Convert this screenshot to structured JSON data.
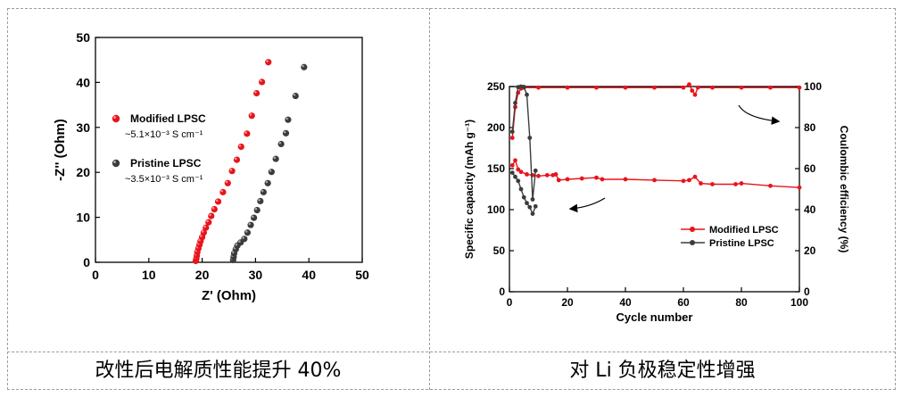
{
  "captions": {
    "left": "改性后电解质性能提升 40%",
    "right": "对 Li 负极稳定性增强"
  },
  "chart_data": [
    {
      "type": "scatter",
      "title": "",
      "xlabel": "Z' (Ohm)",
      "ylabel": "-Z'' (Ohm)",
      "xlim": [
        0,
        50
      ],
      "ylim": [
        0,
        50
      ],
      "xticks": [
        0,
        10,
        20,
        30,
        40,
        50
      ],
      "yticks": [
        0,
        10,
        20,
        30,
        40,
        50
      ],
      "grid": false,
      "legend_position": "left",
      "series": [
        {
          "name": "Modified LPSC",
          "sublabel": "~5.1×10⁻³ S cm⁻¹",
          "color": "#e8141c",
          "points": [
            [
              18.8,
              0.3
            ],
            [
              18.9,
              0.8
            ],
            [
              19.0,
              1.5
            ],
            [
              19.1,
              2.3
            ],
            [
              19.3,
              3.1
            ],
            [
              19.5,
              3.9
            ],
            [
              19.7,
              4.7
            ],
            [
              20.0,
              5.6
            ],
            [
              20.3,
              6.6
            ],
            [
              20.7,
              7.7
            ],
            [
              21.2,
              8.9
            ],
            [
              21.7,
              10.3
            ],
            [
              22.3,
              11.8
            ],
            [
              23.0,
              13.5
            ],
            [
              23.9,
              15.6
            ],
            [
              24.8,
              17.6
            ],
            [
              25.6,
              20.3
            ],
            [
              26.5,
              22.8
            ],
            [
              27.3,
              25.7
            ],
            [
              28.4,
              28.6
            ],
            [
              29.3,
              32.6
            ],
            [
              30.2,
              37.6
            ],
            [
              31.2,
              40.1
            ],
            [
              32.4,
              44.5
            ]
          ]
        },
        {
          "name": "Pristine LPSC",
          "sublabel": "~3.5×10⁻³ S cm⁻¹",
          "color": "#3c3c3c",
          "points": [
            [
              25.8,
              0.5
            ],
            [
              25.9,
              1.2
            ],
            [
              26.0,
              2.0
            ],
            [
              26.3,
              2.9
            ],
            [
              26.6,
              3.7
            ],
            [
              27.2,
              4.4
            ],
            [
              27.9,
              5.2
            ],
            [
              28.5,
              6.6
            ],
            [
              29.1,
              8.3
            ],
            [
              29.7,
              9.9
            ],
            [
              30.3,
              11.6
            ],
            [
              30.9,
              13.6
            ],
            [
              31.5,
              15.6
            ],
            [
              32.3,
              17.6
            ],
            [
              33.0,
              20.1
            ],
            [
              33.8,
              23.0
            ],
            [
              34.8,
              26.3
            ],
            [
              35.7,
              28.7
            ],
            [
              36.1,
              31.7
            ],
            [
              37.5,
              37.0
            ],
            [
              39.1,
              43.4
            ]
          ]
        }
      ]
    },
    {
      "type": "scatter",
      "title": "",
      "xlabel": "Cycle number",
      "ylabel": "Specific capacity (mAh g⁻¹)",
      "y2label": "Coulombic efficiency (%)",
      "xlim": [
        0,
        100
      ],
      "ylim": [
        0,
        250
      ],
      "y2lim": [
        0,
        100
      ],
      "xticks": [
        0,
        20,
        40,
        60,
        80,
        100
      ],
      "yticks": [
        0,
        50,
        100,
        150,
        200,
        250
      ],
      "y2ticks": [
        0,
        20,
        40,
        60,
        80,
        100
      ],
      "grid": false,
      "legend_position": "bottom-right",
      "annotation_arrows": [
        "pointing left toward capacity curves",
        "pointing right toward efficiency curves"
      ],
      "series": [
        {
          "name": "Modified LPSC",
          "color": "#e8141c",
          "capacity": [
            [
              1,
              154
            ],
            [
              2,
              160
            ],
            [
              3,
              149
            ],
            [
              4,
              146
            ],
            [
              6,
              143
            ],
            [
              8,
              142
            ],
            [
              10,
              141
            ],
            [
              13,
              142
            ],
            [
              15,
              142
            ],
            [
              16,
              143
            ],
            [
              17,
              136
            ],
            [
              20,
              137
            ],
            [
              25,
              138
            ],
            [
              30,
              139
            ],
            [
              32,
              137
            ],
            [
              40,
              137
            ],
            [
              50,
              136
            ],
            [
              60,
              135
            ],
            [
              62,
              136
            ],
            [
              64,
              140
            ],
            [
              66,
              132
            ],
            [
              70,
              131
            ],
            [
              78,
              131
            ],
            [
              80,
              132
            ],
            [
              90,
              129
            ],
            [
              100,
              127
            ]
          ],
          "efficiency": [
            [
              1,
              75
            ],
            [
              2,
              90
            ],
            [
              3,
              97
            ],
            [
              4,
              99
            ],
            [
              5,
              99.5
            ],
            [
              10,
              99.5
            ],
            [
              20,
              99.5
            ],
            [
              30,
              99.5
            ],
            [
              40,
              99.5
            ],
            [
              50,
              99.5
            ],
            [
              60,
              99.5
            ],
            [
              62,
              101
            ],
            [
              63,
              98
            ],
            [
              64,
              96
            ],
            [
              65,
              99.5
            ],
            [
              70,
              99.5
            ],
            [
              80,
              99.5
            ],
            [
              90,
              99.5
            ],
            [
              100,
              99.5
            ]
          ]
        },
        {
          "name": "Pristine LPSC",
          "color": "#3c3c3c",
          "capacity": [
            [
              1,
              145
            ],
            [
              2,
              140
            ],
            [
              3,
              135
            ],
            [
              4,
              125
            ],
            [
              5,
              115
            ],
            [
              6,
              108
            ],
            [
              7,
              103
            ],
            [
              8,
              95
            ],
            [
              9,
              104
            ]
          ],
          "efficiency": [
            [
              1,
              78
            ],
            [
              2,
              92
            ],
            [
              3,
              99.7
            ],
            [
              4,
              100
            ],
            [
              5,
              99.8
            ],
            [
              6,
              96
            ],
            [
              7,
              75
            ],
            [
              8,
              45
            ],
            [
              9,
              59
            ]
          ]
        }
      ]
    }
  ]
}
